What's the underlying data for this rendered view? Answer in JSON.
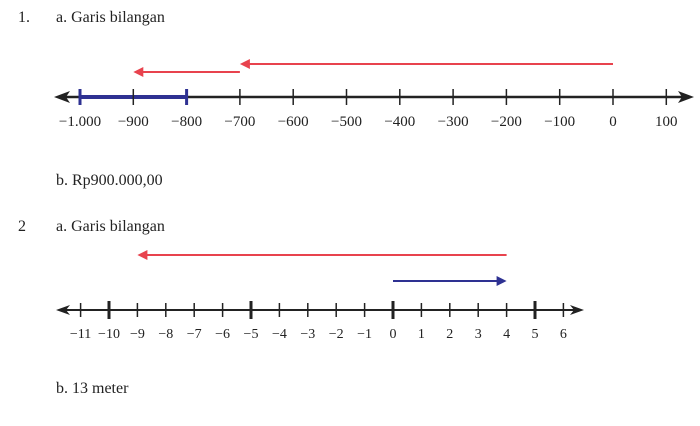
{
  "problem1": {
    "number": "1.",
    "part_a": "a. Garis bilangan",
    "part_b": "b. Rp900.000,00",
    "ticks": [
      "−1.000",
      "−900",
      "−800",
      "−700",
      "−600",
      "−500",
      "−400",
      "−300",
      "−200",
      "−100",
      "0",
      "100"
    ],
    "tick_values": [
      -1000,
      -900,
      -800,
      -700,
      -600,
      -500,
      -400,
      -300,
      -200,
      -100,
      0,
      100
    ],
    "segment": {
      "from": -1000,
      "to": -800
    },
    "arrow_long": {
      "from": 0,
      "to": -700
    },
    "arrow_short": {
      "from": -700,
      "to": -900
    }
  },
  "problem2": {
    "number": "2",
    "part_a": "a. Garis bilangan",
    "part_b": "b. 13 meter",
    "ticks": [
      "−11",
      "−10",
      "−9",
      "−8",
      "−7",
      "−6",
      "−5",
      "−4",
      "−3",
      "−2",
      "−1",
      "0",
      "1",
      "2",
      "3",
      "4",
      "5",
      "6"
    ],
    "tick_values": [
      -11,
      -10,
      -9,
      -8,
      -7,
      -6,
      -5,
      -4,
      -3,
      -2,
      -1,
      0,
      1,
      2,
      3,
      4,
      5,
      6
    ],
    "major_ticks": [
      -10,
      -5,
      0,
      5
    ],
    "arrow_blue": {
      "from": 0,
      "to": 4
    },
    "arrow_red": {
      "from": 4,
      "to": -9
    }
  },
  "colors": {
    "red_arrow": "#e8434e",
    "blue_arrow": "#2e3192",
    "axis": "#222222"
  }
}
